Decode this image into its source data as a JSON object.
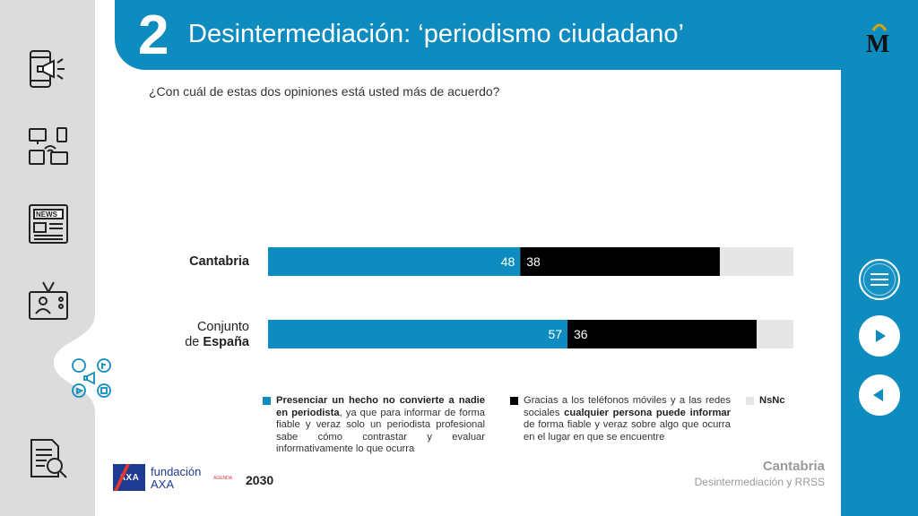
{
  "header": {
    "number": "2",
    "title": "Desintermediación: ‘periodismo ciudadano’"
  },
  "question": "¿Con cuál de estas dos opiniones está usted más de acuerdo?",
  "chart_data": {
    "type": "bar",
    "orientation": "horizontal",
    "stacked": true,
    "max": 100,
    "categories": [
      "Cantabria",
      "Conjunto de España"
    ],
    "series": [
      {
        "name": "Presenciar un hecho no convierte a nadie en periodista",
        "color": "#0e8cbf",
        "values": [
          48,
          57
        ],
        "label_color": "#ffffff"
      },
      {
        "name": "Gracias a los teléfonos móviles y a las redes sociales cualquier persona puede informar",
        "color": "#000000",
        "values": [
          38,
          36
        ],
        "label_color": "#ffffff"
      },
      {
        "name": "NsNc",
        "color": "#e6e6e6",
        "values": [
          14,
          7
        ],
        "label_color": ""
      }
    ],
    "data_labels": [
      [
        "48",
        "38",
        ""
      ],
      [
        "57",
        "36",
        ""
      ]
    ]
  },
  "rows": [
    {
      "line1": "",
      "line2_prefix": "",
      "line2_bold": "Cantabria"
    },
    {
      "line1": "Conjunto",
      "line2_prefix": "de ",
      "line2_bold": "España"
    }
  ],
  "legend": {
    "item1": {
      "bold_a": "Presenciar un hecho no convierte a nadie en periodista",
      "text_a": ", ya que para informar de forma fiable y veraz solo un periodista profesional sabe cómo contrastar y evaluar informativamente lo que ocurra"
    },
    "item2": {
      "text_a": "Gracias a los teléfonos móviles y a las redes sociales ",
      "bold_a": "cualquier persona puede informar",
      "text_b": " de forma fiable y veraz sobre algo que ocurra en el lugar en que se encuentre"
    },
    "item3": {
      "bold_a": "NsNc"
    }
  },
  "footer": {
    "region": "Cantabria",
    "subtitle": "Desintermediación y RRSS",
    "fund_line1": "fundación",
    "fund_line2": "AXA",
    "axa": "AXA",
    "agenda": "AGENDA",
    "agenda_year": "2030"
  },
  "logo": {
    "letter": "M"
  },
  "icons": {
    "sidebar": [
      "megaphone-phone-icon",
      "media-devices-icon",
      "newspaper-icon",
      "tv-presenter-icon",
      "social-media-icon",
      "document-search-icon"
    ],
    "nav": [
      "menu-icon",
      "next-icon",
      "previous-icon"
    ]
  },
  "colors": {
    "accent": "#0e8cbf",
    "sidebar": "#dcdcdc"
  }
}
